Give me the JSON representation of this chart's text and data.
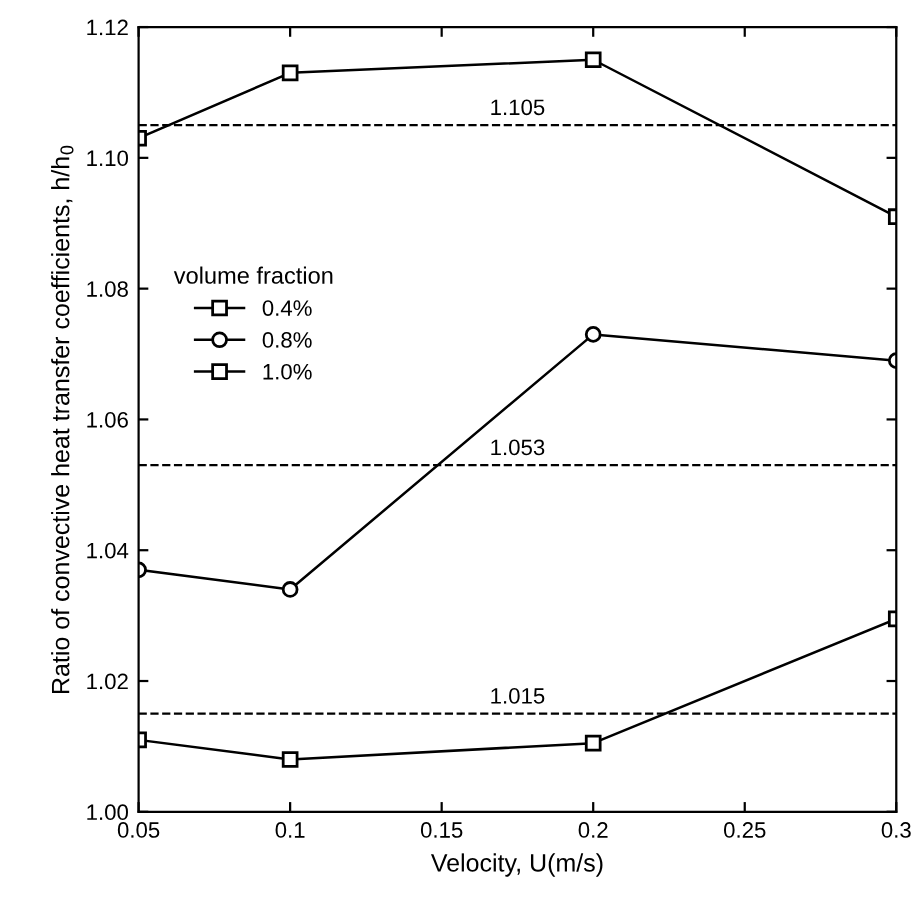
{
  "chart_data": {
    "type": "line",
    "xlabel": "Velocity, U(m/s)",
    "ylabel": "Ratio of convective heat transfer coefficients, h/h$_{0}$",
    "x": [
      0.05,
      0.1,
      0.2,
      0.3
    ],
    "series": [
      {
        "name": "0.4%",
        "color": "#000000",
        "marker": "square",
        "values": [
          1.011,
          1.008,
          1.0105,
          1.0295
        ]
      },
      {
        "name": "0.8%",
        "color": "#000000",
        "marker": "circle",
        "values": [
          1.037,
          1.034,
          1.073,
          1.069
        ]
      },
      {
        "name": "1.0%",
        "color": "#000000",
        "marker": "square",
        "values": [
          1.103,
          1.113,
          1.115,
          1.091
        ]
      }
    ],
    "legend_title": "volume fraction",
    "legend": "left",
    "ref_lines": [
      {
        "axis": "y",
        "value": 1.105,
        "label": "1.105",
        "line_style": "dashed",
        "color": "#000000"
      },
      {
        "axis": "y",
        "value": 1.053,
        "label": "1.053",
        "line_style": "dashed",
        "color": "#000000"
      },
      {
        "axis": "y",
        "value": 1.015,
        "label": "1.015",
        "line_style": "dashed",
        "color": "#000000"
      }
    ],
    "xlim": [
      0.05,
      0.3
    ],
    "xticks": [
      0.05,
      0.1,
      0.15,
      0.2,
      0.25,
      0.3
    ],
    "ylim": [
      1.0,
      1.12
    ],
    "yticks": [
      {
        "value": 1.0,
        "label": "1.00"
      },
      {
        "value": 1.02,
        "label": "1.02"
      },
      {
        "value": 1.04,
        "label": "1.04"
      },
      {
        "value": 1.06,
        "label": "1.06"
      },
      {
        "value": 1.08,
        "label": "1.08"
      },
      {
        "value": 1.1,
        "label": "1.10"
      },
      {
        "value": 1.12,
        "label": "1.12"
      }
    ],
    "grid": false,
    "line_style": "solid"
  }
}
